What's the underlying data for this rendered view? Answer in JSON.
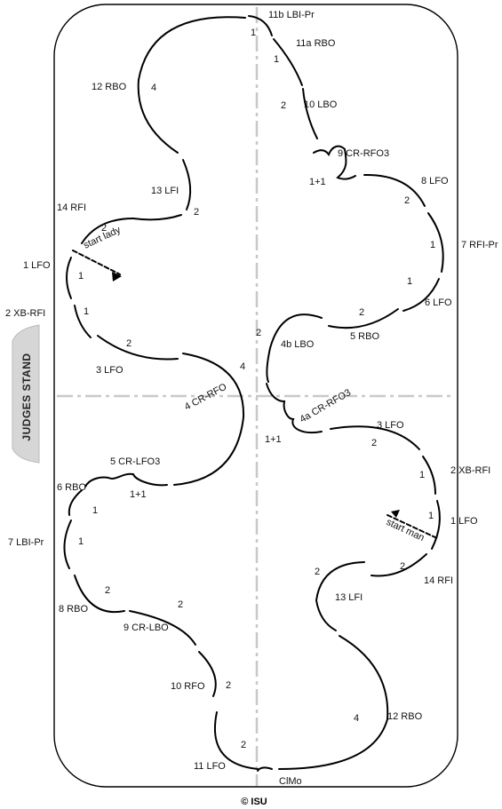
{
  "judges_stand": "JUDGES STAND",
  "copyright": "© ISU",
  "labels": {
    "l_11b": "11b LBI-Pr",
    "l_11a": "11a RBO",
    "l_10lbo": "10 LBO",
    "l_9crrfo3": "9 CR-RFO3",
    "l_8lfo": "8 LFO",
    "l_7rfipr": "7 RFI-Pr",
    "l_6lfo": "6 LFO",
    "l_5rbo": "5 RBO",
    "l_4blbo": "4b LBO",
    "l_4acr": "4a CR-RFO3",
    "l_3lfo_r": "3 LFO",
    "l_2xbrfi_r": "2 XB-RFI",
    "l_1lfo_r": "1 LFO",
    "l_startman": "start man",
    "l_14rfi_r": "14 RFI",
    "l_13lfi_r": "13 LFI",
    "l_12rbo_r": "12 RBO",
    "l_clmo": "ClMo",
    "l_12rbo_l": "12 RBO",
    "l_13lfi_l": "13 LFI",
    "l_14rfi_l": "14 RFI",
    "l_startlady": "start lady",
    "l_1lfo_l": "1 LFO",
    "l_2xbrfi_l": "2 XB-RFI",
    "l_3lfo_l": "3 LFO",
    "l_4crrfo": "4 CR-RFO",
    "l_5crlfo3": "5 CR-LFO3",
    "l_6rbo": "6 RBO",
    "l_7lbipr": "7 LBI-Pr",
    "l_8rbo": "8 RBO",
    "l_9crlbo": "9 CR-LBO",
    "l_10rfo": "10 RFO",
    "l_11lfo": "11 LFO"
  },
  "beats": {
    "b1": "1",
    "b2": "1",
    "b3": "2",
    "b4": "4",
    "b5": "2",
    "b6": "2",
    "b7": "1",
    "b8": "1",
    "b9": "2",
    "b10": "4",
    "b11": "1+1",
    "b12": "1",
    "b13": "2",
    "b14": "2",
    "b15": "1+1",
    "b16": "2",
    "b17": "1",
    "b18": "1",
    "b19": "2",
    "b20": "1+1",
    "b21": "2",
    "b22": "1",
    "b23": "1",
    "b24": "2",
    "b25": "2",
    "b26": "2",
    "b27": "4",
    "b28": "2",
    "b29": "2",
    "b30": "2",
    "b31": "4",
    "b32": "2",
    "b33": "1+1",
    "b34": "1",
    "b35": "2",
    "b36": "1"
  }
}
